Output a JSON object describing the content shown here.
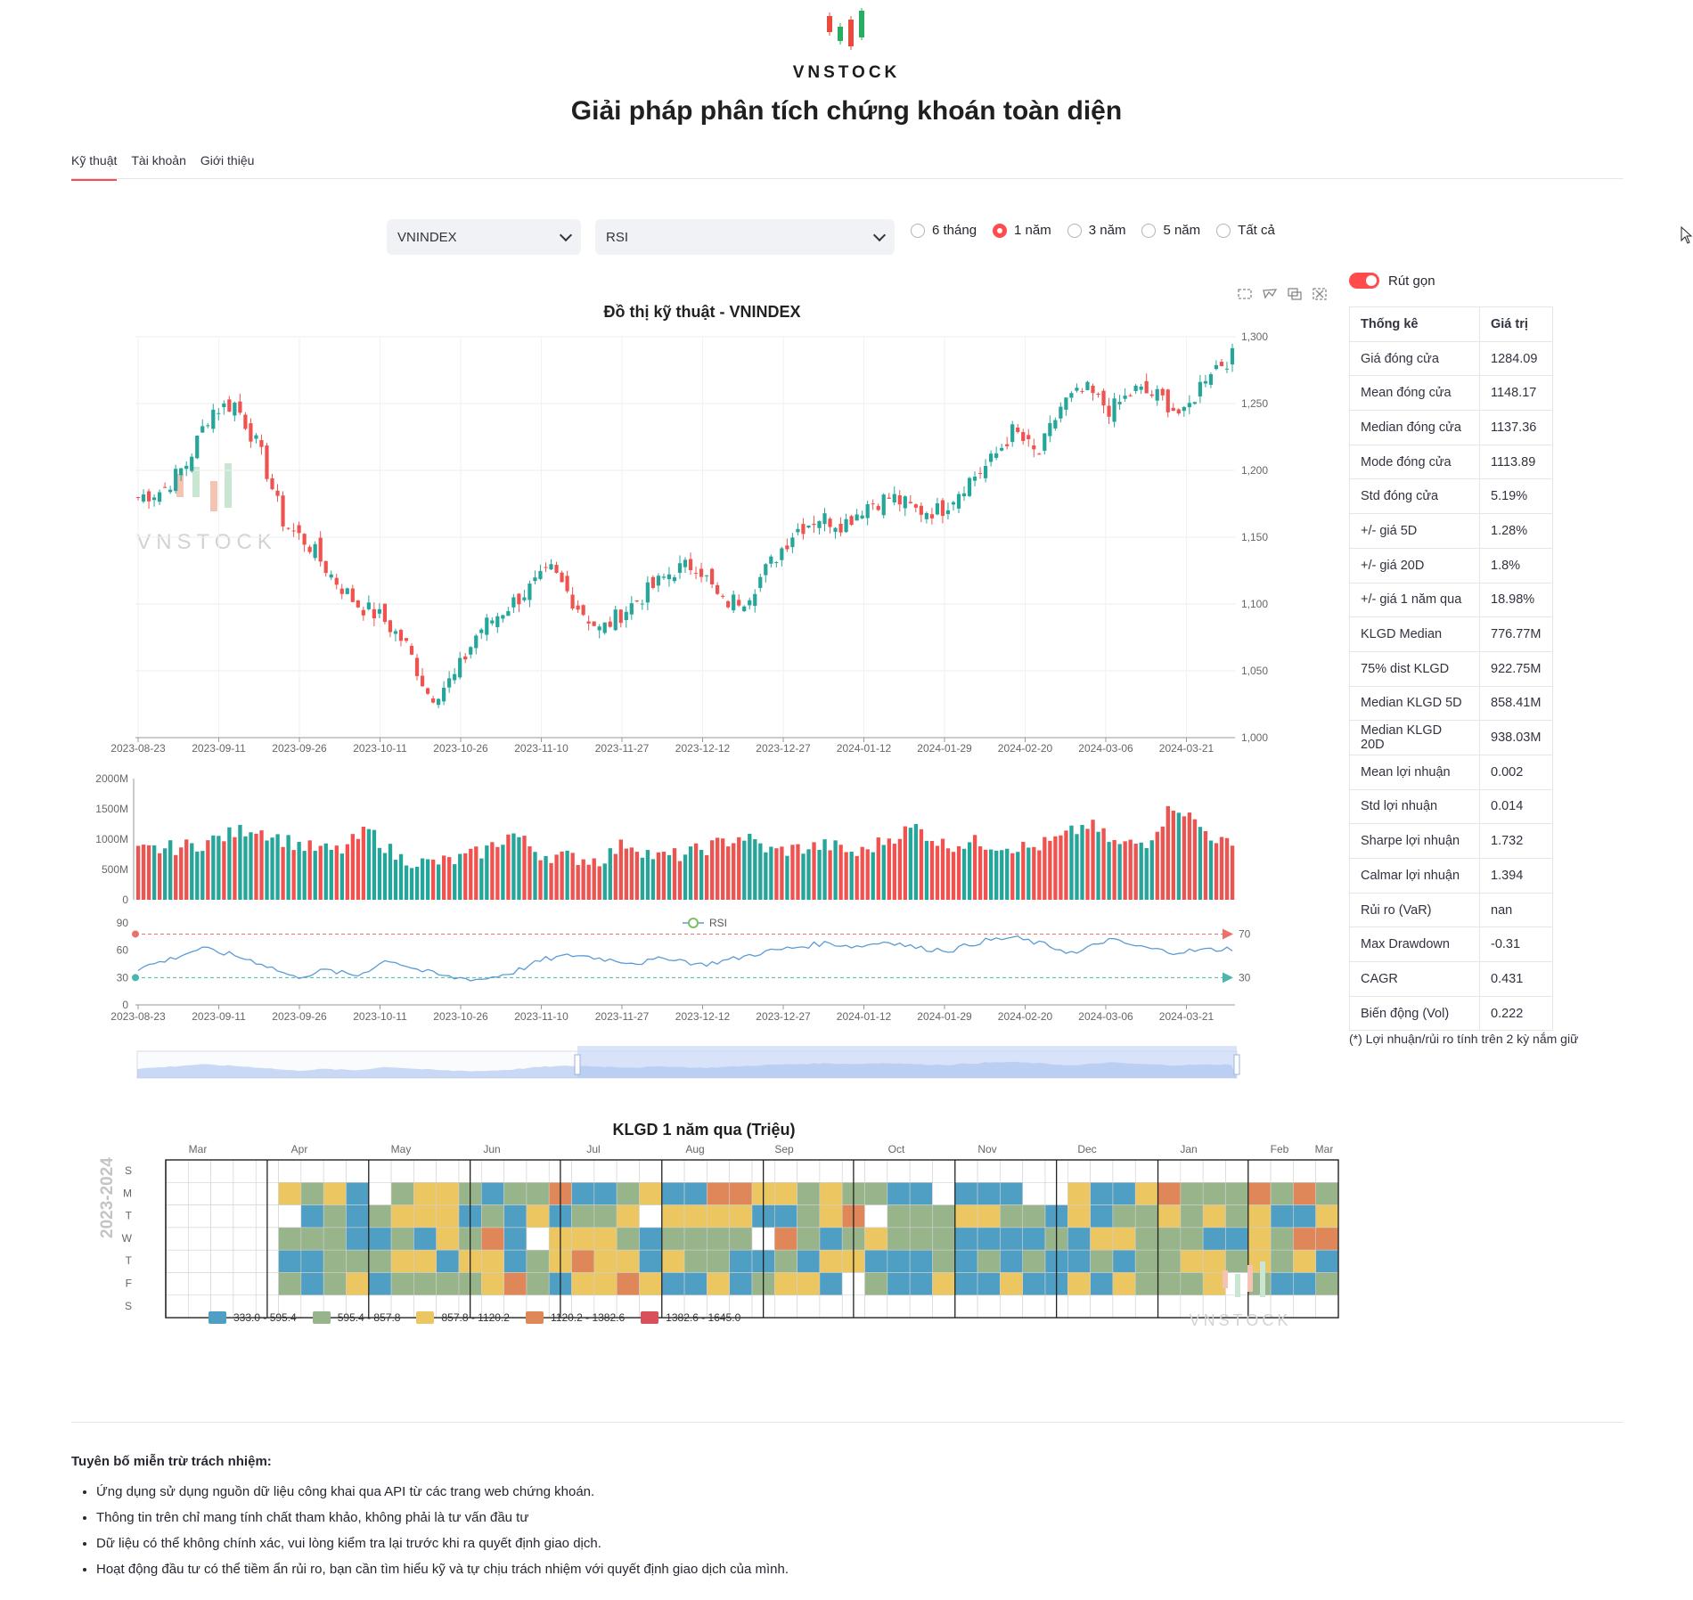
{
  "header": {
    "brand": "VNSTOCK",
    "title": "Giải pháp phân tích chứng khoán toàn diện"
  },
  "tabs": [
    {
      "label": "Kỹ thuật",
      "active": true
    },
    {
      "label": "Tài khoản",
      "active": false
    },
    {
      "label": "Giới thiệu",
      "active": false
    }
  ],
  "controls": {
    "symbol": "VNINDEX",
    "indicator": "RSI",
    "periods": [
      {
        "label": "6 tháng",
        "selected": false
      },
      {
        "label": "1 năm",
        "selected": true
      },
      {
        "label": "3 năm",
        "selected": false
      },
      {
        "label": "5 năm",
        "selected": false
      },
      {
        "label": "Tất cả",
        "selected": false
      }
    ]
  },
  "colors": {
    "up": "#26a69a",
    "down": "#ef5350",
    "accent": "#ff4b4b",
    "rsi": "#5b9bd5"
  },
  "chart_data": [
    {
      "type": "candlestick",
      "title": "Đồ thị kỹ thuật - VNINDEX",
      "x_ticks": [
        "2023-08-23",
        "2023-09-11",
        "2023-09-26",
        "2023-10-11",
        "2023-10-26",
        "2023-11-10",
        "2023-11-27",
        "2023-12-12",
        "2023-12-27",
        "2024-01-12",
        "2024-01-29",
        "2024-02-20",
        "2024-03-06",
        "2024-03-21"
      ],
      "y_ticks": [
        "1,000",
        "1,050",
        "1,100",
        "1,150",
        "1,200",
        "1,250",
        "1,300"
      ],
      "ylim": [
        1000,
        1300
      ],
      "close_anchors": [
        1180,
        1185,
        1205,
        1245,
        1250,
        1215,
        1160,
        1145,
        1120,
        1100,
        1090,
        1070,
        1030,
        1045,
        1080,
        1095,
        1110,
        1125,
        1100,
        1080,
        1095,
        1110,
        1125,
        1130,
        1100,
        1105,
        1130,
        1155,
        1165,
        1160,
        1175,
        1180,
        1170,
        1170,
        1190,
        1205,
        1230,
        1210,
        1250,
        1260,
        1245,
        1260,
        1255,
        1240,
        1275,
        1285
      ],
      "watermark": "VNSTOCK"
    },
    {
      "type": "bar",
      "title": "",
      "y_ticks": [
        "0",
        "500M",
        "1000M",
        "1500M",
        "2000M"
      ],
      "ylim": [
        0,
        2000
      ],
      "volume_anchors": [
        800,
        850,
        900,
        1050,
        1200,
        1000,
        850,
        800,
        1150,
        700,
        600,
        650,
        800,
        1100,
        750,
        700,
        650,
        950,
        700,
        750,
        900,
        1050,
        800,
        850,
        900,
        750,
        1000,
        1200,
        900,
        950,
        900,
        850,
        1000,
        1250,
        900,
        950,
        1600,
        1150,
        850
      ]
    },
    {
      "type": "line",
      "title": "",
      "series": [
        {
          "name": "RSI"
        }
      ],
      "y_ticks": [
        "0",
        "30",
        "60",
        "90"
      ],
      "ylim": [
        0,
        90
      ],
      "markline_labels": [
        "70",
        "30"
      ],
      "x_ticks": [
        "2023-08-23",
        "2023-09-11",
        "2023-09-26",
        "2023-10-11",
        "2023-10-26",
        "2023-11-10",
        "2023-11-27",
        "2023-12-12",
        "2023-12-27",
        "2024-01-12",
        "2024-01-29",
        "2024-02-20",
        "2024-03-06",
        "2024-03-21"
      ],
      "rsi_anchors": [
        40,
        50,
        62,
        55,
        45,
        30,
        38,
        32,
        50,
        38,
        30,
        28,
        36,
        50,
        55,
        50,
        46,
        52,
        44,
        50,
        58,
        63,
        68,
        64,
        70,
        62,
        60,
        70,
        74,
        66,
        56,
        72,
        64,
        58,
        60,
        62
      ]
    },
    {
      "type": "heatmap",
      "title": "KLGD 1 năm qua (Triệu)",
      "year_label": "2023-2024",
      "months": [
        "Mar",
        "Apr",
        "May",
        "Jun",
        "Jul",
        "Aug",
        "Sep",
        "Oct",
        "Nov",
        "Dec",
        "Jan",
        "Feb",
        "Mar"
      ],
      "weekdays": [
        "S",
        "M",
        "T",
        "W",
        "T",
        "F",
        "S"
      ],
      "legend": [
        "333.0 - 595.4",
        "595.4 - 857.8",
        "857.8 - 1120.2",
        "1120.2 - 1382.6",
        "1382.6 - 1645.0"
      ],
      "legend_colors": [
        "#4f9fc4",
        "#98b48a",
        "#ecc660",
        "#e0875a",
        "#d9505b"
      ],
      "watermark": "VNSTOCK"
    }
  ],
  "toggle": {
    "label": "Rút gọn"
  },
  "stats": {
    "header": {
      "k": "Thống kê",
      "v": "Giá trị"
    },
    "rows": [
      {
        "k": "Giá đóng cửa",
        "v": "1284.09"
      },
      {
        "k": "Mean đóng cửa",
        "v": "1148.17"
      },
      {
        "k": "Median đóng cửa",
        "v": "1137.36"
      },
      {
        "k": "Mode đóng cửa",
        "v": "1113.89"
      },
      {
        "k": "Std đóng cửa",
        "v": "5.19%"
      },
      {
        "k": "+/- giá 5D",
        "v": "1.28%"
      },
      {
        "k": "+/- giá 20D",
        "v": "1.8%"
      },
      {
        "k": "+/- giá 1 năm qua",
        "v": "18.98%"
      },
      {
        "k": "KLGD Median",
        "v": "776.77M"
      },
      {
        "k": "75% dist KLGD",
        "v": "922.75M"
      },
      {
        "k": "Median KLGD 5D",
        "v": "858.41M"
      },
      {
        "k": "Median KLGD 20D",
        "v": "938.03M"
      },
      {
        "k": "Mean lợi nhuận",
        "v": "0.002"
      },
      {
        "k": "Std lợi nhuận",
        "v": "0.014"
      },
      {
        "k": "Sharpe lợi nhuận",
        "v": "1.732"
      },
      {
        "k": "Calmar lợi nhuận",
        "v": "1.394"
      },
      {
        "k": "Rủi ro (VaR)",
        "v": "nan"
      },
      {
        "k": "Max Drawdown",
        "v": "-0.31"
      },
      {
        "k": "CAGR",
        "v": "0.431"
      },
      {
        "k": "Biến động (Vol)",
        "v": "0.222"
      }
    ],
    "note": "(*) Lợi nhuận/rủi ro tính trên 2 kỳ nắm giữ"
  },
  "disclaimer": {
    "title": "Tuyên bố miễn trừ trách nhiệm:",
    "items": [
      "Ứng dụng sử dụng nguồn dữ liệu công khai qua API từ các trang web chứng khoán.",
      "Thông tin trên chỉ mang tính chất tham khảo, không phải là tư vấn đầu tư",
      "Dữ liệu có thể không chính xác, vui lòng kiểm tra lại trước khi ra quyết định giao dịch.",
      "Hoạt động đầu tư có thể tiềm ẩn rủi ro, bạn cần tìm hiểu kỹ và tự chịu trách nhiệm với quyết định giao dịch của mình."
    ]
  }
}
